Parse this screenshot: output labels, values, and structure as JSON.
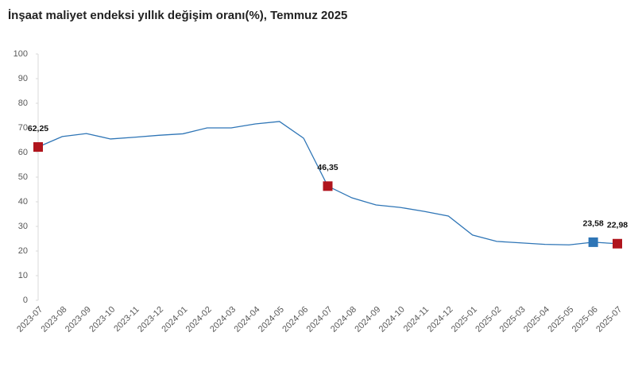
{
  "chart_data": {
    "type": "line",
    "title": "İnşaat maliyet endeksi yıllık değişim oranı(%), Temmuz 2025",
    "categories": [
      "2023-07",
      "2023-08",
      "2023-09",
      "2023-10",
      "2023-11",
      "2023-12",
      "2024-01",
      "2024-02",
      "2024-03",
      "2024-04",
      "2024-05",
      "2024-06",
      "2024-07",
      "2024-08",
      "2024-09",
      "2024-10",
      "2024-11",
      "2024-12",
      "2025-01",
      "2025-02",
      "2025-03",
      "2025-04",
      "2025-05",
      "2025-06",
      "2025-07"
    ],
    "series": [
      {
        "color": "#2e75b6",
        "values": [
          62.25,
          66.5,
          67.7,
          65.5,
          66.2,
          67,
          67.6,
          70,
          70,
          71.6,
          72.6,
          65.8,
          46.35,
          41.6,
          38.7,
          37.7,
          36.1,
          34.2,
          26.5,
          23.9,
          23.3,
          22.7,
          22.5,
          23.58,
          22.98
        ],
        "value_labels": [
          "62,25",
          null,
          null,
          null,
          null,
          null,
          null,
          null,
          null,
          null,
          null,
          null,
          "46,35",
          null,
          null,
          null,
          null,
          null,
          null,
          null,
          null,
          null,
          null,
          "23,58",
          "22,98"
        ],
        "marker_colors": [
          "#b0151d",
          null,
          null,
          null,
          null,
          null,
          null,
          null,
          null,
          null,
          null,
          null,
          "#b0151d",
          null,
          null,
          null,
          null,
          null,
          null,
          null,
          null,
          null,
          null,
          "#2e75b6",
          "#b0151d"
        ]
      }
    ],
    "ylim": [
      0,
      100
    ],
    "yticks": [
      0,
      10,
      20,
      30,
      40,
      50,
      60,
      70,
      80,
      90,
      100
    ],
    "grid": false
  }
}
